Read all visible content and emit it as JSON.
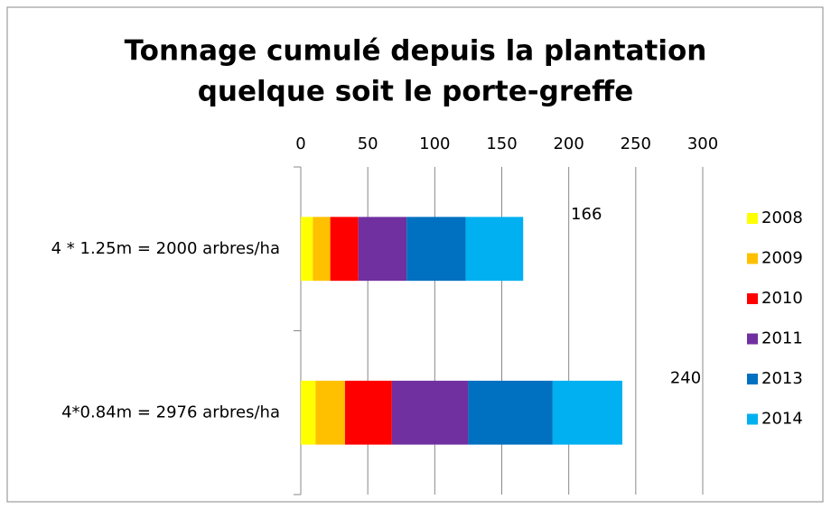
{
  "chart_data": {
    "type": "stacked-bar-horizontal",
    "title": "Tonnage cumulé depuis la plantation",
    "subtitle": "quelque soit le porte-greffe",
    "categories": [
      "4 * 1.25m = 2000 arbres/ha",
      "4*0.84m = 2976 arbres/ha"
    ],
    "series": [
      {
        "name": "2008",
        "color": "#ffff00",
        "values": [
          9,
          11
        ]
      },
      {
        "name": "2009",
        "color": "#ffc000",
        "values": [
          13,
          22
        ]
      },
      {
        "name": "2010",
        "color": "#ff0000",
        "values": [
          21,
          35
        ]
      },
      {
        "name": "2011",
        "color": "#7030a0",
        "values": [
          36,
          57
        ]
      },
      {
        "name": "2013",
        "color": "#0070c0",
        "values": [
          44,
          63
        ]
      },
      {
        "name": "2014",
        "color": "#00b0f0",
        "values": [
          43,
          52
        ]
      }
    ],
    "totals": [
      166,
      240
    ],
    "xlim": [
      0,
      300
    ],
    "xticks": [
      0,
      50,
      100,
      150,
      200,
      250,
      300
    ],
    "grid": true,
    "legend": "right"
  }
}
